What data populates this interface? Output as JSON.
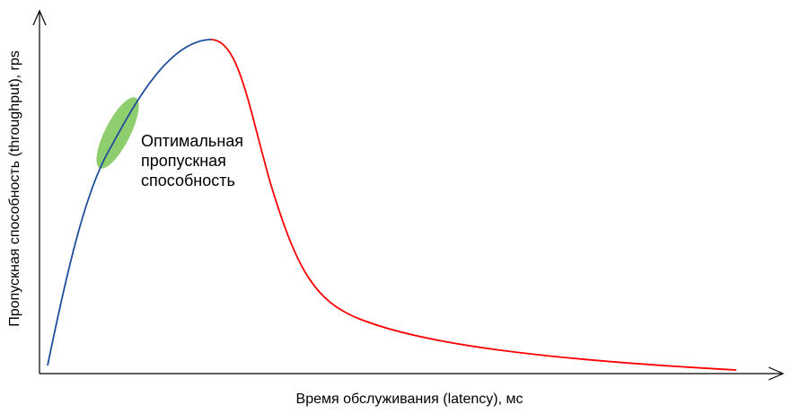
{
  "diagram": {
    "x_axis_label": "Время обслуживания (latency), мс",
    "y_axis_label": "Пропускная способность (throughput), rps",
    "annotation": {
      "lines": [
        "Оптимальная",
        "пропускная",
        "способность"
      ]
    },
    "colors": {
      "rising_curve": "#1f4e9c",
      "falling_curve": "#ff0000",
      "optimal_zone": "#8fce6f",
      "axes": "#000000"
    }
  }
}
